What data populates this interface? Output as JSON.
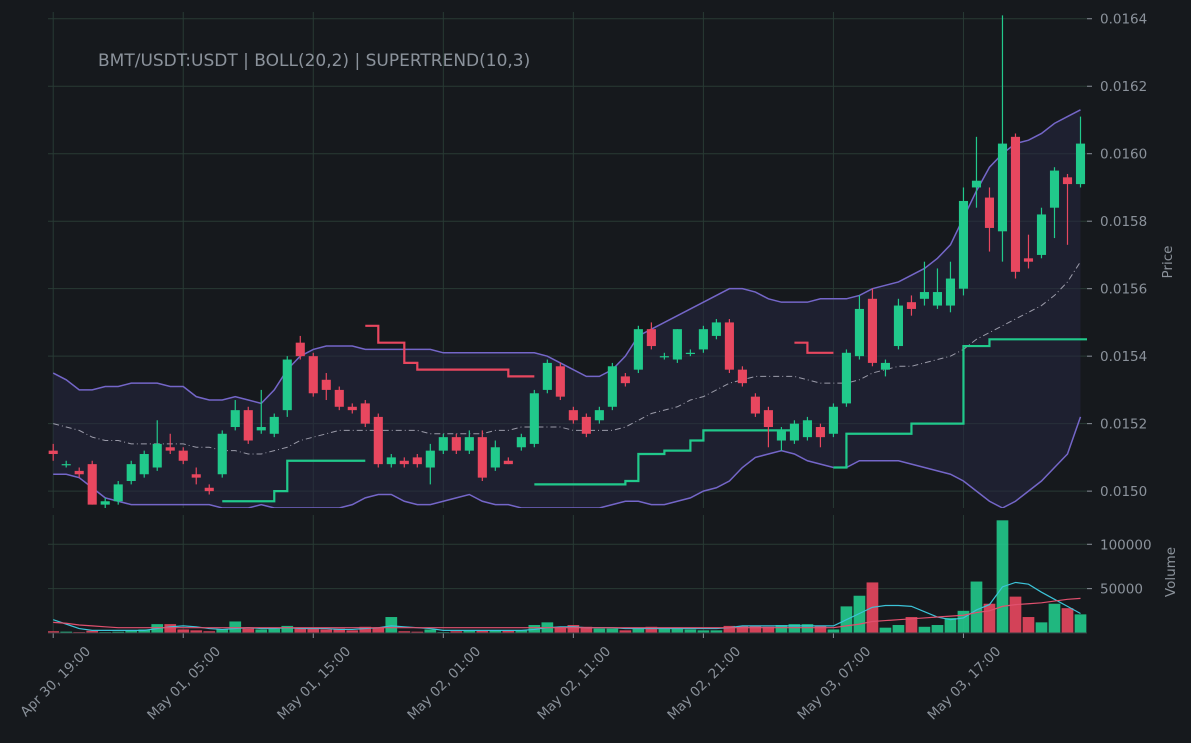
{
  "chart_data": {
    "type": "candlestick",
    "title": "BMT/USDT:USDT | BOLL(20,2) | SUPERTREND(10,3)",
    "ylabel": "Price",
    "up_color": "#21c98b",
    "down_color": "#e8475f",
    "xlim": [
      -0.4,
      79.5
    ],
    "xticks": [
      {
        "value": 0,
        "label": "Apr 30, 19:00"
      },
      {
        "value": 10,
        "label": "May 01, 05:00"
      },
      {
        "value": 20,
        "label": "May 01, 15:00"
      },
      {
        "value": 30,
        "label": "May 02, 01:00"
      },
      {
        "value": 40,
        "label": "May 02, 11:00"
      },
      {
        "value": 50,
        "label": "May 02, 21:00"
      },
      {
        "value": 60,
        "label": "May 03, 07:00"
      },
      {
        "value": 70,
        "label": "May 03, 17:00"
      }
    ],
    "ylim": [
      0.01495,
      0.01642
    ],
    "yticks": [
      {
        "value": 0.015,
        "label": "0.0150"
      },
      0.0152,
      0.0154,
      0.0156,
      0.0158,
      {
        "value": 0.016,
        "label": "0.0160"
      },
      0.0162,
      0.0164
    ],
    "grid": true,
    "open": [
      0.01512,
      0.01508,
      0.01506,
      0.01508,
      0.01496,
      0.01497,
      0.01503,
      0.01505,
      0.01507,
      0.01513,
      0.01512,
      0.01505,
      0.01501,
      0.01505,
      0.01519,
      0.01524,
      0.01518,
      0.01517,
      0.01524,
      0.01544,
      0.0154,
      0.01533,
      0.0153,
      0.01525,
      0.01526,
      0.01522,
      0.01508,
      0.01509,
      0.0151,
      0.01507,
      0.01512,
      0.01516,
      0.01512,
      0.01516,
      0.01507,
      0.01509,
      0.01513,
      0.01514,
      0.0153,
      0.01537,
      0.01524,
      0.01522,
      0.01521,
      0.01525,
      0.01534,
      0.01536,
      0.01548,
      0.0154,
      0.01539,
      0.01541,
      0.01542,
      0.01546,
      0.0155,
      0.01536,
      0.01528,
      0.01524,
      0.01515,
      0.01515,
      0.01516,
      0.01519,
      0.01517,
      0.01526,
      0.0154,
      0.01557,
      0.01536,
      0.01543,
      0.01556,
      0.01557,
      0.01555,
      0.01555,
      0.0156,
      0.0159,
      0.01587,
      0.01577,
      0.01605,
      0.01569,
      0.0157,
      0.01584,
      0.01593,
      0.01591
    ],
    "high": [
      0.01514,
      0.01509,
      0.01507,
      0.01509,
      0.01498,
      0.01503,
      0.01509,
      0.01512,
      0.01521,
      0.01517,
      0.01513,
      0.01507,
      0.01502,
      0.01518,
      0.01527,
      0.01525,
      0.0153,
      0.01523,
      0.0154,
      0.01546,
      0.01541,
      0.01535,
      0.01531,
      0.01526,
      0.01527,
      0.01523,
      0.01511,
      0.0151,
      0.01511,
      0.01514,
      0.01517,
      0.01517,
      0.01518,
      0.01518,
      0.01515,
      0.0151,
      0.01517,
      0.0153,
      0.01539,
      0.01538,
      0.01525,
      0.01523,
      0.01525,
      0.01538,
      0.01535,
      0.01549,
      0.0155,
      0.01541,
      0.01548,
      0.01542,
      0.01549,
      0.01551,
      0.01551,
      0.01537,
      0.01529,
      0.01525,
      0.01519,
      0.01521,
      0.01522,
      0.0152,
      0.01526,
      0.01542,
      0.01558,
      0.0156,
      0.01539,
      0.01557,
      0.01558,
      0.01568,
      0.01566,
      0.01568,
      0.0159,
      0.01605,
      0.0159,
      0.01641,
      0.01606,
      0.01576,
      0.01584,
      0.01596,
      0.01594,
      0.01611
    ],
    "low": [
      0.01509,
      0.01507,
      0.01504,
      0.01496,
      0.01495,
      0.01496,
      0.01502,
      0.01504,
      0.01506,
      0.01511,
      0.01508,
      0.01502,
      0.01499,
      0.01504,
      0.01518,
      0.01514,
      0.01517,
      0.01516,
      0.01522,
      0.01539,
      0.01528,
      0.01527,
      0.01524,
      0.01523,
      0.01519,
      0.01507,
      0.01507,
      0.01507,
      0.01507,
      0.01502,
      0.01511,
      0.01511,
      0.01511,
      0.01503,
      0.01506,
      0.01508,
      0.01512,
      0.01513,
      0.01529,
      0.01527,
      0.0152,
      0.01516,
      0.0152,
      0.01524,
      0.01531,
      0.01535,
      0.01542,
      0.01539,
      0.01538,
      0.0154,
      0.01541,
      0.01545,
      0.01535,
      0.01531,
      0.01522,
      0.01513,
      0.01512,
      0.01514,
      0.01515,
      0.01513,
      0.01516,
      0.01525,
      0.01539,
      0.01537,
      0.01534,
      0.01542,
      0.01552,
      0.01555,
      0.01554,
      0.01553,
      0.01558,
      0.01584,
      0.01571,
      0.01568,
      0.01563,
      0.01566,
      0.01569,
      0.01575,
      0.01573,
      0.0159
    ],
    "close": [
      0.01511,
      0.01508,
      0.01505,
      0.01496,
      0.01497,
      0.01502,
      0.01508,
      0.01511,
      0.01514,
      0.01512,
      0.01509,
      0.01504,
      0.015,
      0.01517,
      0.01524,
      0.01515,
      0.01519,
      0.01522,
      0.01539,
      0.0154,
      0.01529,
      0.0153,
      0.01525,
      0.01524,
      0.0152,
      0.01508,
      0.0151,
      0.01508,
      0.01508,
      0.01512,
      0.01516,
      0.01512,
      0.01516,
      0.01504,
      0.01513,
      0.01508,
      0.01516,
      0.01529,
      0.01538,
      0.01528,
      0.01521,
      0.01517,
      0.01524,
      0.01537,
      0.01532,
      0.01548,
      0.01543,
      0.0154,
      0.01548,
      0.01541,
      0.01548,
      0.0155,
      0.01536,
      0.01532,
      0.01523,
      0.01519,
      0.01518,
      0.0152,
      0.01521,
      0.01516,
      0.01525,
      0.01541,
      0.01554,
      0.01538,
      0.01538,
      0.01555,
      0.01554,
      0.01559,
      0.01559,
      0.01563,
      0.01586,
      0.01592,
      0.01578,
      0.01603,
      0.01565,
      0.01568,
      0.01582,
      0.01595,
      0.01591,
      0.01603
    ],
    "boll": {
      "band_color": "#7466c8",
      "mid_color": "#9a9aa8",
      "fill": "#262640",
      "upper": [
        0.01535,
        0.01533,
        0.0153,
        0.0153,
        0.01531,
        0.01531,
        0.01532,
        0.01532,
        0.01532,
        0.01531,
        0.01531,
        0.01528,
        0.01527,
        0.01527,
        0.01528,
        0.01527,
        0.01526,
        0.0153,
        0.01536,
        0.0154,
        0.01542,
        0.01543,
        0.01543,
        0.01543,
        0.01542,
        0.01542,
        0.01542,
        0.01542,
        0.01542,
        0.01542,
        0.01541,
        0.01541,
        0.01541,
        0.01541,
        0.01541,
        0.01541,
        0.01541,
        0.01541,
        0.0154,
        0.01538,
        0.01536,
        0.01534,
        0.01534,
        0.01536,
        0.0154,
        0.01546,
        0.01548,
        0.0155,
        0.01552,
        0.01554,
        0.01556,
        0.01558,
        0.0156,
        0.0156,
        0.01559,
        0.01557,
        0.01556,
        0.01556,
        0.01556,
        0.01557,
        0.01557,
        0.01557,
        0.01558,
        0.0156,
        0.01561,
        0.01562,
        0.01564,
        0.01566,
        0.01569,
        0.01573,
        0.01581,
        0.01589,
        0.01596,
        0.016,
        0.01603,
        0.01604,
        0.01606,
        0.01609,
        0.01611,
        0.01613
      ],
      "middle": [
        0.0152,
        0.01519,
        0.01518,
        0.01516,
        0.01515,
        0.01515,
        0.01514,
        0.01514,
        0.01514,
        0.01514,
        0.01514,
        0.01513,
        0.01513,
        0.01512,
        0.01512,
        0.01511,
        0.01511,
        0.01512,
        0.01513,
        0.01515,
        0.01516,
        0.01517,
        0.01518,
        0.01518,
        0.01518,
        0.01518,
        0.01518,
        0.01518,
        0.01518,
        0.01517,
        0.01517,
        0.01517,
        0.01517,
        0.01517,
        0.01518,
        0.01518,
        0.01519,
        0.01519,
        0.01519,
        0.01519,
        0.01518,
        0.01518,
        0.01518,
        0.01518,
        0.01519,
        0.01521,
        0.01523,
        0.01524,
        0.01525,
        0.01527,
        0.01528,
        0.0153,
        0.01532,
        0.01533,
        0.01534,
        0.01534,
        0.01534,
        0.01534,
        0.01533,
        0.01532,
        0.01532,
        0.01532,
        0.01533,
        0.01535,
        0.01536,
        0.01537,
        0.01537,
        0.01538,
        0.01539,
        0.0154,
        0.01542,
        0.01545,
        0.01547,
        0.01549,
        0.01551,
        0.01553,
        0.01555,
        0.01558,
        0.01562,
        0.01568
      ],
      "lower": [
        0.01505,
        0.01505,
        0.01504,
        0.01501,
        0.01498,
        0.01497,
        0.01496,
        0.01496,
        0.01496,
        0.01496,
        0.01496,
        0.01496,
        0.01496,
        0.01495,
        0.01495,
        0.01495,
        0.01496,
        0.01495,
        0.01495,
        0.01495,
        0.01495,
        0.01495,
        0.01495,
        0.01496,
        0.01498,
        0.01499,
        0.01499,
        0.01497,
        0.01496,
        0.01496,
        0.01497,
        0.01498,
        0.01499,
        0.01497,
        0.01496,
        0.01496,
        0.01495,
        0.01495,
        0.01495,
        0.01495,
        0.01495,
        0.01495,
        0.01495,
        0.01496,
        0.01497,
        0.01497,
        0.01496,
        0.01496,
        0.01497,
        0.01498,
        0.015,
        0.01501,
        0.01503,
        0.01507,
        0.0151,
        0.01511,
        0.01512,
        0.01511,
        0.01509,
        0.01508,
        0.01507,
        0.01507,
        0.01509,
        0.01509,
        0.01509,
        0.01509,
        0.01508,
        0.01507,
        0.01506,
        0.01505,
        0.01503,
        0.015,
        0.01497,
        0.01495,
        0.01497,
        0.015,
        0.01503,
        0.01507,
        0.01511,
        0.01522
      ]
    },
    "supertrend": {
      "up": [
        null,
        null,
        null,
        null,
        null,
        null,
        null,
        null,
        null,
        null,
        null,
        null,
        null,
        0.01497,
        0.01497,
        0.01497,
        0.01497,
        0.015,
        0.01509,
        0.01509,
        0.01509,
        0.01509,
        0.01509,
        0.01509,
        null,
        null,
        null,
        null,
        null,
        null,
        null,
        null,
        null,
        null,
        null,
        null,
        null,
        0.01502,
        0.01502,
        0.01502,
        0.01502,
        0.01502,
        0.01502,
        0.01502,
        0.01503,
        0.01511,
        0.01511,
        0.01512,
        0.01512,
        0.01515,
        0.01518,
        0.01518,
        0.01518,
        0.01518,
        0.01518,
        0.01518,
        0.01518,
        null,
        null,
        null,
        0.01507,
        0.01517,
        0.01517,
        0.01517,
        0.01517,
        0.01517,
        0.0152,
        0.0152,
        0.0152,
        0.0152,
        0.01543,
        0.01543,
        0.01545,
        0.01545,
        0.01545,
        0.01545,
        0.01545,
        0.01545,
        0.01545,
        0.01545
      ],
      "down": [
        null,
        null,
        null,
        null,
        null,
        null,
        null,
        null,
        null,
        null,
        null,
        null,
        null,
        null,
        null,
        null,
        null,
        null,
        null,
        null,
        null,
        null,
        null,
        null,
        0.01549,
        0.01544,
        0.01544,
        0.01538,
        0.01536,
        0.01536,
        0.01536,
        0.01536,
        0.01536,
        0.01536,
        0.01536,
        0.01534,
        0.01534,
        null,
        null,
        null,
        null,
        null,
        null,
        null,
        null,
        null,
        null,
        null,
        null,
        null,
        null,
        null,
        null,
        null,
        null,
        null,
        null,
        0.01544,
        0.01541,
        0.01541,
        null,
        null,
        null,
        null,
        null,
        null,
        null,
        null,
        null,
        null,
        null,
        null,
        null,
        null,
        null,
        null,
        null,
        null,
        null,
        null
      ]
    },
    "volume": {
      "ylabel": "Volume",
      "ylim": [
        0,
        133000
      ],
      "yticks": [
        50000,
        100000
      ],
      "values": [
        2000,
        1500,
        1000,
        2500,
        1000,
        1500,
        3000,
        4000,
        10000,
        10000,
        4000,
        3000,
        2000,
        4000,
        13000,
        5000,
        4000,
        5000,
        8000,
        5000,
        5000,
        4000,
        5000,
        3000,
        7000,
        6000,
        18000,
        2000,
        1500,
        4000,
        1000,
        2000,
        2500,
        3000,
        3000,
        2500,
        3000,
        9000,
        12000,
        6000,
        9000,
        7000,
        5000,
        5000,
        3000,
        6000,
        7000,
        5000,
        5000,
        4000,
        3000,
        3000,
        8000,
        8000,
        8000,
        7000,
        9000,
        10000,
        10000,
        8000,
        4000,
        30000,
        42000,
        57000,
        6000,
        9000,
        18000,
        7000,
        9000,
        17000,
        25000,
        58000,
        33000,
        127000,
        41000,
        18000,
        12000,
        33000,
        28000,
        21000
      ],
      "ma": [
        {
          "color": "#3cc3d8",
          "values": [
            15000,
            10000,
            5000,
            3000,
            3000,
            3000,
            3000,
            3000,
            5000,
            7000,
            8000,
            7000,
            5000,
            4000,
            5000,
            6000,
            5000,
            5000,
            6000,
            5000,
            5000,
            5000,
            4000,
            4000,
            5000,
            6000,
            8000,
            7000,
            6000,
            5000,
            3000,
            3000,
            3000,
            3000,
            3000,
            3000,
            3000,
            4000,
            6000,
            7000,
            7000,
            6000,
            6000,
            6000,
            5000,
            5000,
            5000,
            5000,
            5000,
            5000,
            5000,
            5000,
            6000,
            8000,
            8000,
            8000,
            8000,
            8000,
            8000,
            8000,
            8000,
            15000,
            22000,
            29000,
            31000,
            31000,
            30000,
            24000,
            18000,
            15000,
            17000,
            26000,
            32000,
            52000,
            57000,
            55000,
            46000,
            38000,
            30000,
            22000
          ]
        },
        {
          "color": "#e0506e",
          "values": [
            12000,
            11000,
            9000,
            8000,
            7000,
            6000,
            6000,
            6000,
            6000,
            6000,
            6000,
            6000,
            6000,
            6000,
            6000,
            6000,
            6000,
            6000,
            6000,
            6000,
            6000,
            6000,
            6000,
            6000,
            6000,
            6000,
            6000,
            6000,
            6000,
            6000,
            6000,
            6000,
            6000,
            6000,
            6000,
            6000,
            6000,
            6000,
            6000,
            6000,
            6000,
            6000,
            6000,
            6000,
            6000,
            6000,
            6000,
            6000,
            6000,
            6000,
            6000,
            6000,
            6000,
            6000,
            6000,
            6000,
            6000,
            6000,
            6000,
            6000,
            6000,
            8000,
            10000,
            13000,
            14000,
            15000,
            16000,
            17000,
            18000,
            19000,
            20000,
            23000,
            25000,
            30000,
            32000,
            33000,
            34000,
            36000,
            38000,
            39000
          ]
        }
      ]
    }
  }
}
